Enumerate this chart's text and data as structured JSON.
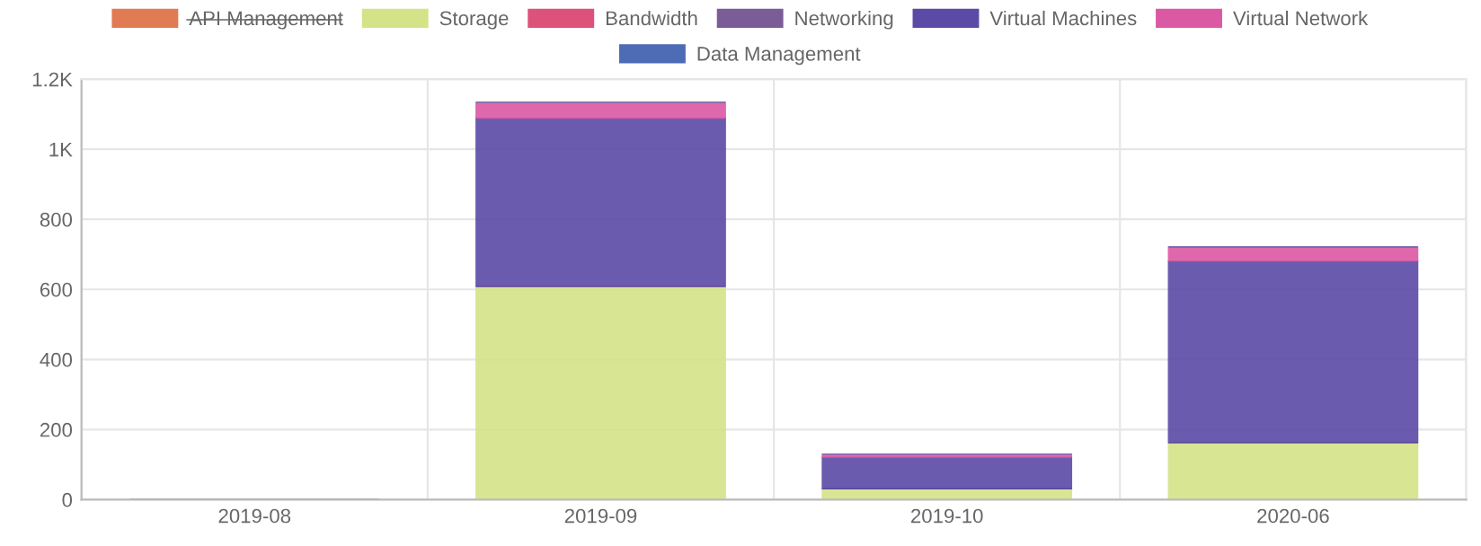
{
  "chart_data": {
    "type": "bar",
    "stacked": true,
    "categories": [
      "2019-08",
      "2019-09",
      "2019-10",
      "2020-06"
    ],
    "series": [
      {
        "name": "API Management",
        "color": "#e07b54",
        "values": [
          null,
          null,
          null,
          null
        ]
      },
      {
        "name": "Storage",
        "color": "#d4e388",
        "values": [
          null,
          609,
          31,
          163
        ]
      },
      {
        "name": "Bandwidth",
        "color": "#dd527b",
        "values": [
          0,
          0,
          0,
          0
        ]
      },
      {
        "name": "Networking",
        "color": "#7a5c97",
        "values": [
          0,
          0,
          0,
          0
        ]
      },
      {
        "name": "Virtual Machines",
        "color": "#5b4aa6",
        "values": [
          0,
          480,
          90,
          518
        ]
      },
      {
        "name": "Virtual Network",
        "color": "#db58a3",
        "values": [
          0,
          45,
          9,
          40
        ]
      },
      {
        "name": "Data Management",
        "color": "#4e6bb5",
        "values": [
          0,
          0,
          0,
          0
        ]
      }
    ],
    "ylim": [
      0,
      1200
    ],
    "yticks": [
      0,
      200,
      400,
      600,
      800,
      {
        "value": 1000,
        "label": "1K"
      },
      {
        "value": 1200,
        "label": "1.2K"
      }
    ],
    "grid": true,
    "legend": "top"
  }
}
